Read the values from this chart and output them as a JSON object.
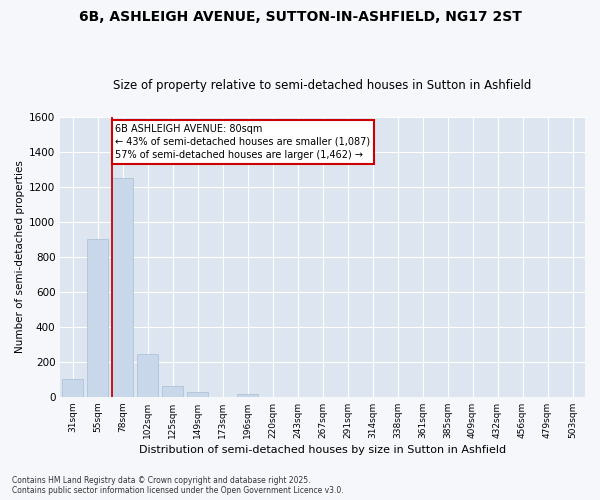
{
  "title": "6B, ASHLEIGH AVENUE, SUTTON-IN-ASHFIELD, NG17 2ST",
  "subtitle": "Size of property relative to semi-detached houses in Sutton in Ashfield",
  "xlabel": "Distribution of semi-detached houses by size in Sutton in Ashfield",
  "ylabel": "Number of semi-detached properties",
  "categories": [
    "31sqm",
    "55sqm",
    "78sqm",
    "102sqm",
    "125sqm",
    "149sqm",
    "173sqm",
    "196sqm",
    "220sqm",
    "243sqm",
    "267sqm",
    "291sqm",
    "314sqm",
    "338sqm",
    "361sqm",
    "385sqm",
    "409sqm",
    "432sqm",
    "456sqm",
    "479sqm",
    "503sqm"
  ],
  "values": [
    100,
    900,
    1250,
    245,
    60,
    25,
    0,
    15,
    0,
    0,
    0,
    0,
    0,
    0,
    0,
    0,
    0,
    0,
    0,
    0,
    0
  ],
  "bar_color": "#c8d8ea",
  "bar_edge_color": "#b0c4d8",
  "vline_color": "#cc0000",
  "vline_x_index": 2,
  "annotation_line1": "6B ASHLEIGH AVENUE: 80sqm",
  "annotation_line2": "← 43% of semi-detached houses are smaller (1,087)",
  "annotation_line3": "57% of semi-detached houses are larger (1,462) →",
  "box_facecolor": "#ffffff",
  "box_edgecolor": "#cc0000",
  "background_color": "#f5f7fa",
  "plot_bg_color": "#dde6f0",
  "grid_color": "#ffffff",
  "ylim": [
    0,
    1600
  ],
  "yticks": [
    0,
    200,
    400,
    600,
    800,
    1000,
    1200,
    1400,
    1600
  ],
  "title_fontsize": 10,
  "subtitle_fontsize": 8.5,
  "footnote": "Contains HM Land Registry data © Crown copyright and database right 2025.\nContains public sector information licensed under the Open Government Licence v3.0."
}
